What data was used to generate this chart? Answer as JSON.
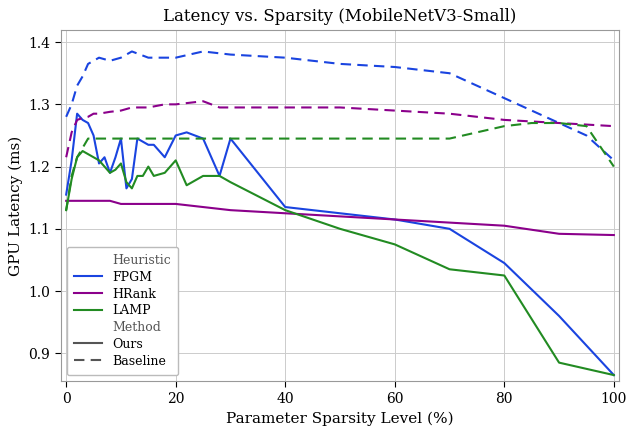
{
  "title": "Latency vs. Sparsity (MobileNetV3-Small)",
  "xlabel": "Parameter Sparsity Level (%)",
  "ylabel": "GPU Latency (ms)",
  "xlim": [
    -1,
    101
  ],
  "ylim": [
    0.855,
    1.42
  ],
  "yticks": [
    0.9,
    1.0,
    1.1,
    1.2,
    1.3,
    1.4
  ],
  "xticks": [
    0,
    20,
    40,
    60,
    80,
    100
  ],
  "fpgm_ours_x": [
    0,
    1,
    2,
    3,
    4,
    5,
    6,
    7,
    8,
    9,
    10,
    11,
    12,
    13,
    14,
    15,
    16,
    17,
    18,
    20,
    22,
    25,
    28,
    30,
    40,
    50,
    60,
    70,
    80,
    90,
    100
  ],
  "fpgm_ours_y": [
    1.155,
    1.21,
    1.285,
    1.275,
    1.27,
    1.25,
    1.205,
    1.215,
    1.19,
    1.215,
    1.245,
    1.165,
    1.18,
    1.245,
    1.24,
    1.235,
    1.235,
    1.225,
    1.215,
    1.25,
    1.255,
    1.245,
    1.185,
    1.245,
    1.135,
    1.125,
    1.115,
    1.1,
    1.045,
    0.96,
    0.865
  ],
  "fpgm_base_x": [
    0,
    1,
    2,
    3,
    4,
    5,
    6,
    8,
    10,
    12,
    15,
    20,
    25,
    30,
    40,
    50,
    60,
    70,
    80,
    90,
    95,
    100
  ],
  "fpgm_base_y": [
    1.28,
    1.3,
    1.33,
    1.345,
    1.365,
    1.37,
    1.375,
    1.37,
    1.375,
    1.385,
    1.375,
    1.375,
    1.385,
    1.38,
    1.375,
    1.365,
    1.36,
    1.35,
    1.31,
    1.27,
    1.25,
    1.21
  ],
  "hrank_ours_x": [
    0,
    2,
    4,
    6,
    8,
    10,
    12,
    15,
    20,
    25,
    30,
    40,
    50,
    60,
    70,
    80,
    90,
    100
  ],
  "hrank_ours_y": [
    1.145,
    1.145,
    1.145,
    1.145,
    1.145,
    1.14,
    1.14,
    1.14,
    1.14,
    1.135,
    1.13,
    1.125,
    1.12,
    1.115,
    1.11,
    1.105,
    1.092,
    1.09
  ],
  "hrank_base_x": [
    0,
    1,
    2,
    3,
    4,
    5,
    6,
    8,
    10,
    12,
    15,
    18,
    20,
    25,
    28,
    30,
    40,
    50,
    60,
    70,
    80,
    90,
    100
  ],
  "hrank_base_y": [
    1.215,
    1.255,
    1.275,
    1.278,
    1.28,
    1.285,
    1.285,
    1.288,
    1.29,
    1.295,
    1.295,
    1.3,
    1.3,
    1.305,
    1.295,
    1.295,
    1.295,
    1.295,
    1.29,
    1.285,
    1.275,
    1.27,
    1.265
  ],
  "lamp_ours_x": [
    0,
    1,
    2,
    3,
    4,
    5,
    6,
    7,
    8,
    9,
    10,
    11,
    12,
    13,
    14,
    15,
    16,
    18,
    20,
    22,
    25,
    28,
    30,
    40,
    50,
    60,
    70,
    80,
    90,
    100
  ],
  "lamp_ours_y": [
    1.13,
    1.18,
    1.215,
    1.225,
    1.22,
    1.215,
    1.21,
    1.2,
    1.19,
    1.195,
    1.205,
    1.175,
    1.165,
    1.185,
    1.185,
    1.2,
    1.185,
    1.19,
    1.21,
    1.17,
    1.185,
    1.185,
    1.175,
    1.13,
    1.1,
    1.075,
    1.035,
    1.025,
    0.885,
    0.865
  ],
  "lamp_base_x": [
    0,
    1,
    2,
    3,
    4,
    5,
    6,
    8,
    10,
    12,
    15,
    20,
    25,
    30,
    40,
    50,
    60,
    70,
    80,
    85,
    90,
    95,
    100
  ],
  "lamp_base_y": [
    1.13,
    1.185,
    1.215,
    1.23,
    1.245,
    1.245,
    1.245,
    1.245,
    1.245,
    1.245,
    1.245,
    1.245,
    1.245,
    1.245,
    1.245,
    1.245,
    1.245,
    1.245,
    1.265,
    1.27,
    1.27,
    1.265,
    1.2
  ],
  "color_fpgm": "#1a44e0",
  "color_hrank": "#8b008b",
  "color_lamp": "#228b22",
  "color_method_legend": "#555555",
  "background_color": "#ffffff",
  "grid_color": "#cccccc"
}
